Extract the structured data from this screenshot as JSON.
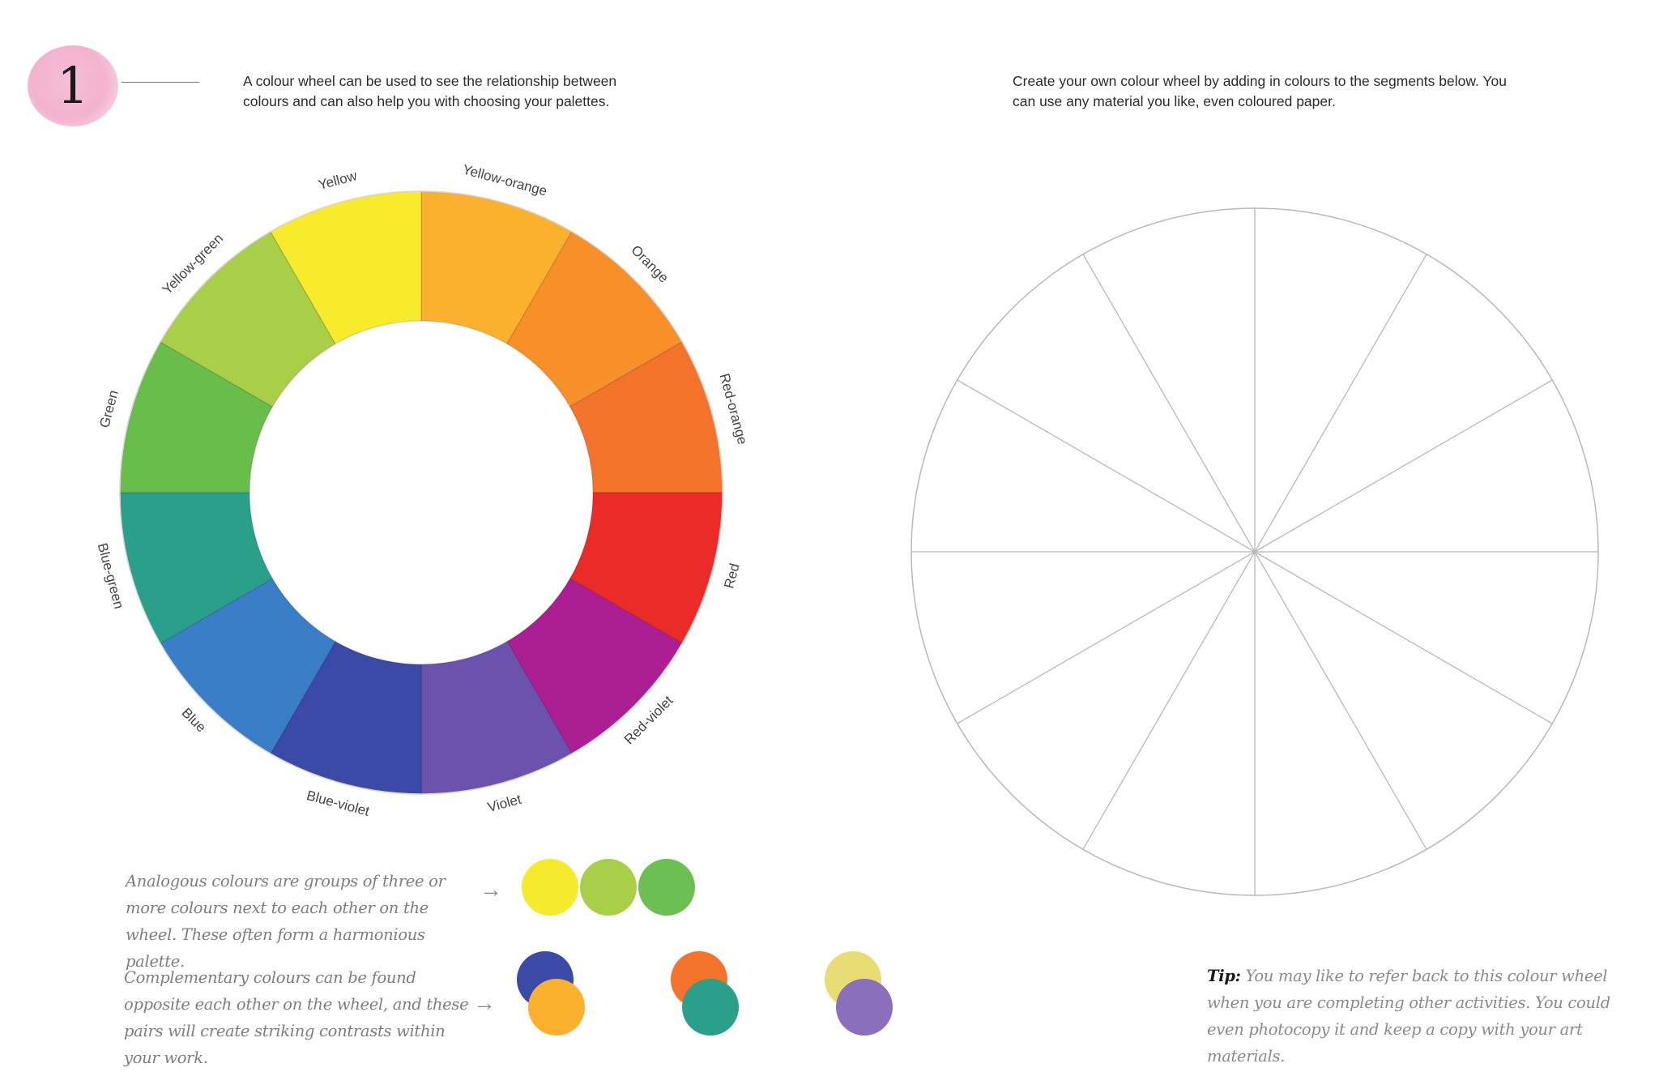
{
  "page": {
    "number": "1",
    "intro_left": "A colour wheel can be used to see the relationship between colours and can also help you with choosing your palettes.",
    "intro_right": "Create your own colour wheel by adding in colours to the segments below. You can use any material you like, even coloured paper."
  },
  "colour_wheel": {
    "segments": [
      {
        "label": "Yellow-orange",
        "color": "#fbb02e"
      },
      {
        "label": "Orange",
        "color": "#f8902a"
      },
      {
        "label": "Red-orange",
        "color": "#f3732a"
      },
      {
        "label": "Red",
        "color": "#ea2b27"
      },
      {
        "label": "Red-violet",
        "color": "#ac1e93"
      },
      {
        "label": "Violet",
        "color": "#6a52ad"
      },
      {
        "label": "Blue-violet",
        "color": "#3a4aa6"
      },
      {
        "label": "Blue",
        "color": "#3b7ec8"
      },
      {
        "label": "Blue-green",
        "color": "#2a9f8a"
      },
      {
        "label": "Green",
        "color": "#69bd4a"
      },
      {
        "label": "Yellow-green",
        "color": "#a8cf47"
      },
      {
        "label": "Yellow",
        "color": "#f8eb2c"
      }
    ]
  },
  "blank_wheel": {
    "segment_count": 12,
    "line_color": "#b8b8b8"
  },
  "analogous": {
    "text": "Analogous colours are groups of three or more colours next to each other on the wheel. These often form a harmonious palette.",
    "arrow": "→",
    "swatches": [
      "#f6ea2c",
      "#a8cf47",
      "#6cbf52"
    ]
  },
  "complementary": {
    "text": "Complementary colours can be found opposite each other on the wheel, and these pairs will create striking contrasts within your work.",
    "arrow": "→",
    "pairs": [
      {
        "back": "#3a4aa6",
        "front": "#fbb02e"
      },
      {
        "back": "#f3732a",
        "front": "#2a9f8a"
      },
      {
        "back": "#e8dd74",
        "front": "#8a6fbd"
      }
    ]
  },
  "tip": {
    "label": "Tip:",
    "text": " You may like to refer back to this colour wheel when you are completing other activities. You could even photocopy it and keep a copy with your art materials."
  }
}
